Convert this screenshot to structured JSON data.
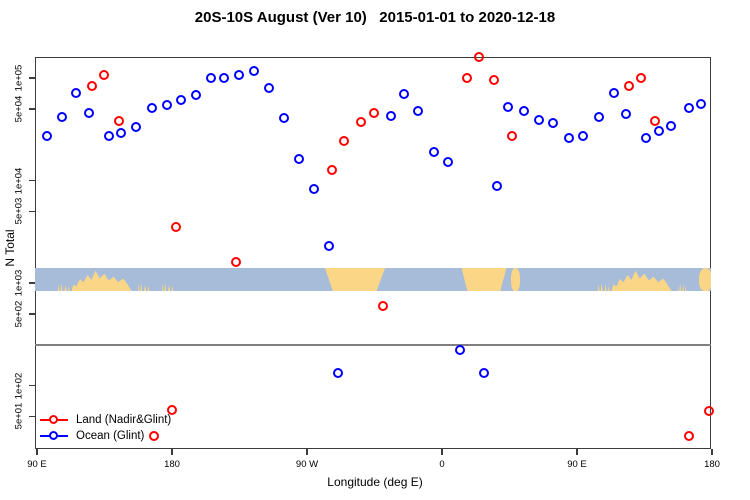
{
  "title": "20S-10S August (Ver 10)   2015-01-01 to 2020-12-18",
  "chart_data": {
    "type": "scatter",
    "title": "20S-10S August (Ver 10)   2015-01-01 to 2020-12-18",
    "y_axis": {
      "label": "N Total",
      "scale": "log",
      "ticks": [
        {
          "v": 100000,
          "label": "1e+05"
        },
        {
          "v": 50000,
          "label": "5e+04"
        },
        {
          "v": 10000,
          "label": "1e+04"
        },
        {
          "v": 5000,
          "label": "5e+03"
        },
        {
          "v": 1000,
          "label": "1e+03"
        },
        {
          "v": 500,
          "label": "5e+02"
        },
        {
          "v": 100,
          "label": "1e+02"
        },
        {
          "v": 50,
          "label": "5e+01"
        }
      ]
    },
    "x_axis": {
      "label": "Longitude (deg E)",
      "range_deg_from_90E": [
        0,
        450
      ],
      "ticks": [
        {
          "deg": 0,
          "label": "90 E"
        },
        {
          "deg": 90,
          "label": "180"
        },
        {
          "deg": 180,
          "label": "90 W"
        },
        {
          "deg": 270,
          "label": "0"
        },
        {
          "deg": 360,
          "label": "90 E"
        },
        {
          "deg": 450,
          "label": "180"
        }
      ]
    },
    "reference_line": {
      "value": 250,
      "color": "#808080"
    },
    "map_strip": {
      "v_top": 1400,
      "v_bottom": 836,
      "ocean_color": "#a6bcd8",
      "land_color": "#fbd687",
      "land_patches": [
        {
          "deg0": 14,
          "deg1": 22,
          "kind": "islands"
        },
        {
          "deg0": 23,
          "deg1": 63,
          "kind": "jagged"
        },
        {
          "deg0": 67,
          "deg1": 75,
          "kind": "islands"
        },
        {
          "deg0": 83,
          "deg1": 91,
          "kind": "islands"
        },
        {
          "deg0": 192,
          "deg1": 232,
          "kind": "block"
        },
        {
          "deg0": 283,
          "deg1": 313,
          "kind": "block"
        },
        {
          "deg0": 316,
          "deg1": 322,
          "kind": "small"
        },
        {
          "deg0": 374,
          "deg1": 382,
          "kind": "islands"
        },
        {
          "deg0": 383,
          "deg1": 423,
          "kind": "jagged"
        },
        {
          "deg0": 427,
          "deg1": 433,
          "kind": "islands"
        },
        {
          "deg0": 441,
          "deg1": 450,
          "kind": "small"
        }
      ]
    },
    "series": [
      {
        "name": "Land (Nadir&Glint)",
        "color": "#ff0000",
        "points": [
          {
            "deg": 37,
            "n": 82000
          },
          {
            "deg": 45,
            "n": 105000
          },
          {
            "deg": 55,
            "n": 38000
          },
          {
            "deg": 78,
            "n": 32
          },
          {
            "deg": 90,
            "n": 57
          },
          {
            "deg": 93,
            "n": 3500
          },
          {
            "deg": 133,
            "n": 1600
          },
          {
            "deg": 197,
            "n": 12600
          },
          {
            "deg": 205,
            "n": 24000
          },
          {
            "deg": 216,
            "n": 37000
          },
          {
            "deg": 225,
            "n": 45000
          },
          {
            "deg": 231,
            "n": 590
          },
          {
            "deg": 287,
            "n": 98000
          },
          {
            "deg": 295,
            "n": 160000
          },
          {
            "deg": 305,
            "n": 94000
          },
          {
            "deg": 317,
            "n": 27000
          },
          {
            "deg": 395,
            "n": 83000
          },
          {
            "deg": 403,
            "n": 100000
          },
          {
            "deg": 412,
            "n": 38000
          },
          {
            "deg": 435,
            "n": 32
          },
          {
            "deg": 448,
            "n": 56
          }
        ]
      },
      {
        "name": "Ocean (Glint)",
        "color": "#0000ff",
        "points": [
          {
            "deg": 7,
            "n": 27000
          },
          {
            "deg": 17,
            "n": 41000
          },
          {
            "deg": 26,
            "n": 70000
          },
          {
            "deg": 35,
            "n": 45000
          },
          {
            "deg": 48,
            "n": 27000
          },
          {
            "deg": 56,
            "n": 29000
          },
          {
            "deg": 66,
            "n": 33000
          },
          {
            "deg": 77,
            "n": 50000
          },
          {
            "deg": 87,
            "n": 54000
          },
          {
            "deg": 96,
            "n": 60000
          },
          {
            "deg": 106,
            "n": 68000
          },
          {
            "deg": 116,
            "n": 98000
          },
          {
            "deg": 125,
            "n": 98000
          },
          {
            "deg": 135,
            "n": 105000
          },
          {
            "deg": 145,
            "n": 117000
          },
          {
            "deg": 155,
            "n": 80000
          },
          {
            "deg": 165,
            "n": 40000
          },
          {
            "deg": 175,
            "n": 16000
          },
          {
            "deg": 185,
            "n": 8100
          },
          {
            "deg": 195,
            "n": 2300
          },
          {
            "deg": 201,
            "n": 130
          },
          {
            "deg": 236,
            "n": 42000
          },
          {
            "deg": 245,
            "n": 69000
          },
          {
            "deg": 254,
            "n": 47000
          },
          {
            "deg": 265,
            "n": 19000
          },
          {
            "deg": 274,
            "n": 15000
          },
          {
            "deg": 282,
            "n": 220
          },
          {
            "deg": 298,
            "n": 130
          },
          {
            "deg": 307,
            "n": 8800
          },
          {
            "deg": 314,
            "n": 52000
          },
          {
            "deg": 325,
            "n": 47000
          },
          {
            "deg": 335,
            "n": 39000
          },
          {
            "deg": 344,
            "n": 36000
          },
          {
            "deg": 355,
            "n": 26000
          },
          {
            "deg": 364,
            "n": 27000
          },
          {
            "deg": 375,
            "n": 41000
          },
          {
            "deg": 385,
            "n": 70000
          },
          {
            "deg": 393,
            "n": 44000
          },
          {
            "deg": 406,
            "n": 26000
          },
          {
            "deg": 415,
            "n": 30000
          },
          {
            "deg": 423,
            "n": 34000
          },
          {
            "deg": 435,
            "n": 50000
          },
          {
            "deg": 443,
            "n": 55000
          }
        ]
      }
    ]
  }
}
